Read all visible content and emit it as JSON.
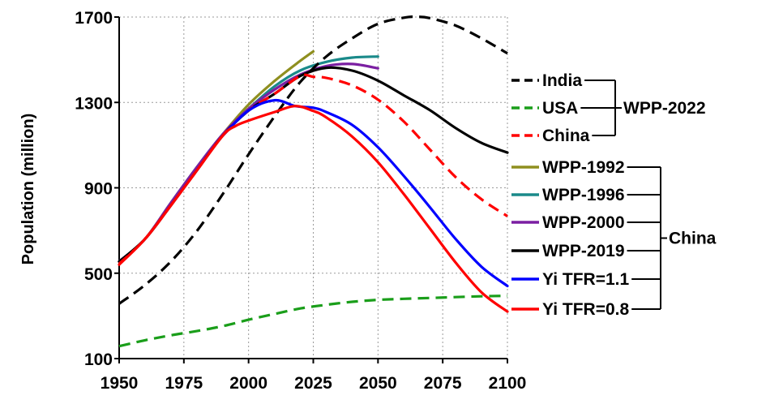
{
  "chart_data": {
    "type": "line",
    "title": "",
    "xlabel": "",
    "ylabel": "Population (million)",
    "xlim": [
      1950,
      2100
    ],
    "ylim": [
      100,
      1700
    ],
    "xticks": [
      "1950",
      "1975",
      "2000",
      "2025",
      "2050",
      "2075",
      "2100"
    ],
    "yticks": [
      "100",
      "500",
      "900",
      "1300",
      "1700"
    ],
    "grid": "dotted",
    "series": [
      {
        "name": "India",
        "group": "WPP-2022",
        "color": "#000000",
        "dash": "dashed",
        "x": [
          1950,
          1960,
          1970,
          1980,
          1990,
          2000,
          2010,
          2020,
          2030,
          2040,
          2050,
          2060,
          2065,
          2070,
          2080,
          2090,
          2100
        ],
        "y": [
          357,
          445,
          555,
          697,
          870,
          1057,
          1234,
          1396,
          1515,
          1600,
          1668,
          1697,
          1701,
          1695,
          1660,
          1600,
          1530
        ]
      },
      {
        "name": "USA",
        "group": "WPP-2022",
        "color": "#1a9e1a",
        "dash": "dashed",
        "x": [
          1950,
          1960,
          1970,
          1980,
          1990,
          2000,
          2010,
          2020,
          2030,
          2040,
          2050,
          2060,
          2070,
          2080,
          2090,
          2100
        ],
        "y": [
          158,
          186,
          209,
          229,
          252,
          282,
          309,
          335,
          352,
          366,
          375,
          380,
          384,
          388,
          392,
          394
        ]
      },
      {
        "name": "China",
        "group": "WPP-2022",
        "color": "#ff0000",
        "dash": "dashed",
        "x": [
          1950,
          1960,
          1970,
          1980,
          1990,
          2000,
          2010,
          2020,
          2025,
          2030,
          2040,
          2050,
          2060,
          2070,
          2080,
          2090,
          2100
        ],
        "y": [
          544,
          660,
          818,
          981,
          1144,
          1262,
          1340,
          1424,
          1420,
          1415,
          1380,
          1313,
          1210,
          1080,
          950,
          846,
          767
        ]
      },
      {
        "name": "WPP-1992",
        "group": "China",
        "color": "#8f8f1f",
        "dash": "solid",
        "x": [
          1950,
          1960,
          1970,
          1980,
          1990,
          2000,
          2010,
          2020,
          2025
        ],
        "y": [
          555,
          660,
          830,
          996,
          1150,
          1290,
          1400,
          1495,
          1539
        ]
      },
      {
        "name": "WPP-1996",
        "group": "China",
        "color": "#1a8a8a",
        "dash": "solid",
        "x": [
          1950,
          1960,
          1970,
          1980,
          1990,
          2000,
          2010,
          2020,
          2030,
          2040,
          2050
        ],
        "y": [
          555,
          660,
          830,
          996,
          1150,
          1270,
          1375,
          1450,
          1490,
          1510,
          1515
        ]
      },
      {
        "name": "WPP-2000",
        "group": "China",
        "color": "#7b1fa2",
        "dash": "solid",
        "x": [
          1950,
          1960,
          1970,
          1980,
          1990,
          2000,
          2010,
          2020,
          2030,
          2040,
          2050
        ],
        "y": [
          555,
          660,
          830,
          996,
          1150,
          1270,
          1360,
          1430,
          1470,
          1480,
          1460
        ]
      },
      {
        "name": "WPP-2019",
        "group": "China",
        "color": "#000000",
        "dash": "solid",
        "x": [
          1950,
          1960,
          1970,
          1980,
          1990,
          2000,
          2010,
          2020,
          2030,
          2040,
          2050,
          2060,
          2070,
          2080,
          2090,
          2100
        ],
        "y": [
          554,
          660,
          818,
          981,
          1144,
          1262,
          1340,
          1424,
          1462,
          1449,
          1402,
          1333,
          1264,
          1180,
          1110,
          1065
        ]
      },
      {
        "name": "Yi TFR=1.1",
        "group": "China",
        "color": "#0000ff",
        "dash": "solid",
        "x": [
          1990,
          2000,
          2010,
          2018,
          2025,
          2030,
          2040,
          2050,
          2060,
          2070,
          2080,
          2090,
          2100
        ],
        "y": [
          1144,
          1262,
          1310,
          1283,
          1275,
          1255,
          1195,
          1090,
          955,
          810,
          660,
          530,
          440
        ]
      },
      {
        "name": "Yi TFR=0.8",
        "group": "China",
        "color": "#ff0000",
        "dash": "solid",
        "x": [
          1950,
          1960,
          1970,
          1980,
          1990,
          1995,
          2000,
          2010,
          2018,
          2025,
          2030,
          2040,
          2050,
          2060,
          2070,
          2080,
          2090,
          2100
        ],
        "y": [
          540,
          660,
          818,
          981,
          1144,
          1190,
          1215,
          1255,
          1283,
          1260,
          1230,
          1140,
          1020,
          870,
          710,
          550,
          410,
          320
        ]
      }
    ],
    "groups": [
      {
        "label": "WPP-2022",
        "members": [
          "India",
          "USA",
          "China"
        ]
      },
      {
        "label": "China",
        "members": [
          "WPP-1992",
          "WPP-1996",
          "WPP-2000",
          "WPP-2019",
          "Yi TFR=1.1",
          "Yi TFR=0.8"
        ]
      }
    ]
  }
}
